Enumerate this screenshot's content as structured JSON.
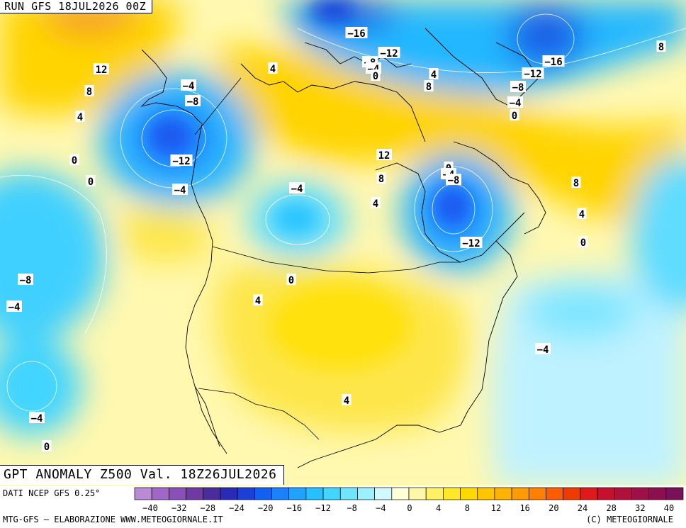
{
  "header": {
    "run_label": "RUN GFS 18JUL2026 00Z"
  },
  "title": {
    "text": "GPT ANOMALY Z500 Val. 18Z26JUL2026"
  },
  "footer": {
    "source": "DATI NCEP GFS 0.25°",
    "credit_left": "MTG-GFS — ELABORAZIONE WWW.METEOGIORNALE.IT",
    "credit_right": "(C) METEOGIORNALE"
  },
  "colors": {
    "pos_strong": "#f5a623",
    "pos_mid": "#ffcc00",
    "pos_light": "#fde64a",
    "pos_pale": "#fff8b0",
    "neutral": "#ffffd0",
    "neg_pale": "#ccf8ff",
    "neg_light": "#66e0ff",
    "neg_mid": "#20b8ff",
    "neg_strong": "#1060ff",
    "neg_deep": "#0b2fd9"
  },
  "scale": {
    "tick_labels": [
      "-40",
      "-32",
      "-28",
      "-24",
      "-20",
      "-16",
      "-12",
      "-8",
      "-4",
      "0",
      "4",
      "8",
      "12",
      "16",
      "20",
      "24",
      "28",
      "32",
      "40"
    ],
    "colors": [
      "#b98ad6",
      "#a067c9",
      "#8a4fb9",
      "#6f3aa3",
      "#4a2c9e",
      "#2a2ab8",
      "#1c3fd8",
      "#1160f0",
      "#1a82ff",
      "#20a3ff",
      "#25c0ff",
      "#40d6ff",
      "#6ee6ff",
      "#9df0ff",
      "#cff8ff",
      "#ffffd8",
      "#fff8a8",
      "#fff066",
      "#ffe926",
      "#ffd800",
      "#ffc600",
      "#ffb300",
      "#ff9a00",
      "#ff7f00",
      "#ff5c00",
      "#f03a00",
      "#e01a1a",
      "#c8102e",
      "#b0103a",
      "#a01048",
      "#8c1050",
      "#7a1058"
    ]
  },
  "contour_labels": [
    {
      "text": "-16"
    },
    {
      "text": "-12"
    },
    {
      "text": "-8"
    },
    {
      "text": "-4"
    },
    {
      "text": "0"
    },
    {
      "text": "4"
    },
    {
      "text": "8"
    },
    {
      "text": "-16"
    },
    {
      "text": "-12"
    },
    {
      "text": "-8"
    },
    {
      "text": "-4"
    },
    {
      "text": "0"
    },
    {
      "text": "8"
    },
    {
      "text": "12"
    },
    {
      "text": "8"
    },
    {
      "text": "4"
    },
    {
      "text": "0"
    },
    {
      "text": "0"
    },
    {
      "text": "-4"
    },
    {
      "text": "-8"
    },
    {
      "text": "-12"
    },
    {
      "text": "-4"
    },
    {
      "text": "4"
    },
    {
      "text": "-4"
    },
    {
      "text": "12"
    },
    {
      "text": "8"
    },
    {
      "text": "4"
    },
    {
      "text": "0"
    },
    {
      "text": "-4"
    },
    {
      "text": "-8"
    },
    {
      "text": "-12"
    },
    {
      "text": "8"
    },
    {
      "text": "4"
    },
    {
      "text": "0"
    },
    {
      "text": "-8"
    },
    {
      "text": "-4"
    },
    {
      "text": "0"
    },
    {
      "text": "4"
    },
    {
      "text": "-4"
    },
    {
      "text": "4"
    },
    {
      "text": "-4"
    },
    {
      "text": "0"
    }
  ]
}
